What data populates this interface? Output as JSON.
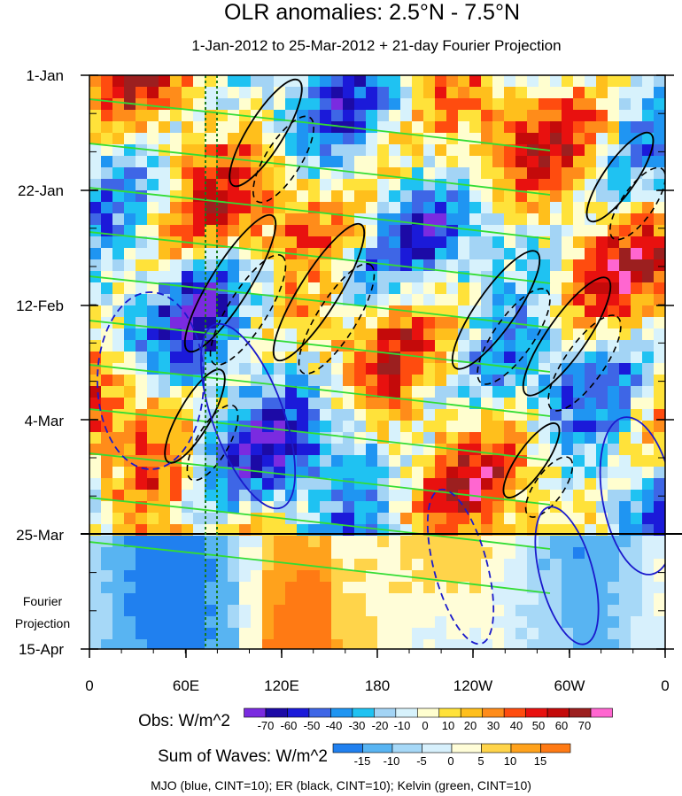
{
  "chart_data": {
    "type": "heatmap",
    "title": "OLR anomalies: 2.5°N - 7.5°N",
    "subtitle": "1-Jan-2012 to 25-Mar-2012 + 21-day Fourier Projection",
    "y_ticks": [
      "1-Jan",
      "22-Jan",
      "12-Feb",
      "4-Mar",
      "25-Mar",
      "15-Apr"
    ],
    "forecast_label": [
      "Fourier",
      "Projection"
    ],
    "x_ticks": [
      "0",
      "60E",
      "120E",
      "180",
      "120W",
      "60W",
      "0"
    ],
    "obs_label": "Obs: W/m^2",
    "obs_levels": [
      "-70",
      "-60",
      "-50",
      "-40",
      "-30",
      "-20",
      "-10",
      "0",
      "10",
      "20",
      "30",
      "40",
      "50",
      "60",
      "70"
    ],
    "obs_colors": [
      "#7a2be0",
      "#1c0aa6",
      "#1b1ad9",
      "#3e66e6",
      "#1f95f2",
      "#1fc2f2",
      "#a3d4f5",
      "#d7f2fc",
      "#fffecf",
      "#ffe23a",
      "#ffbf1c",
      "#ff8c1a",
      "#ff4c0f",
      "#e8110f",
      "#c40a0a",
      "#9c1f1f",
      "#ff66d0"
    ],
    "waves_label": "Sum of Waves: W/m^2",
    "waves_levels": [
      "-15",
      "-10",
      "-5",
      "0",
      "5",
      "10",
      "15"
    ],
    "waves_colors": [
      "#2080ef",
      "#58b4f2",
      "#a6d8f7",
      "#d7f0fc",
      "#fffdd8",
      "#ffd44a",
      "#ffa21c",
      "#ff7a14"
    ],
    "footer": "MJO (blue, CINT=10); ER (black, CINT=10); Kelvin (green, CINT=10)",
    "wave_colors": {
      "mjo": "#1a1acc",
      "er": "#000000",
      "kelvin": "#33dd33"
    }
  }
}
